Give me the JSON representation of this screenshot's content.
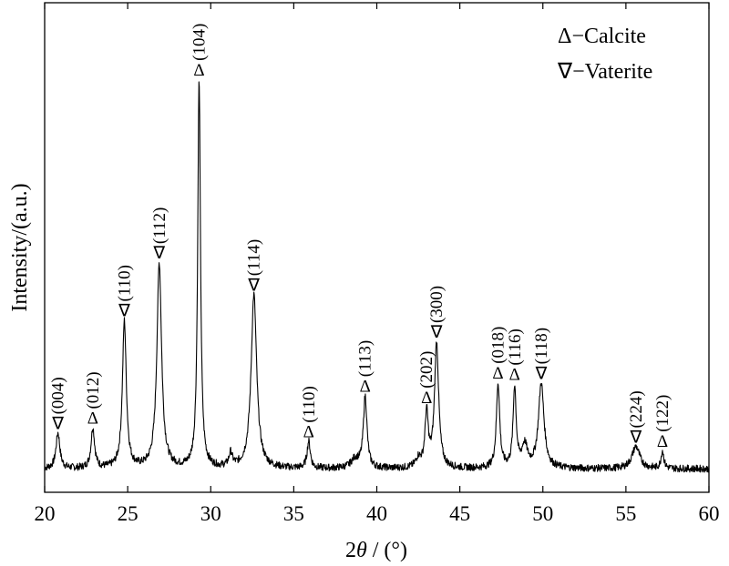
{
  "chart_data": {
    "type": "line",
    "title": "",
    "xlabel_prefix": "2",
    "xlabel_theta": "θ",
    "xlabel_suffix": " / (°)",
    "ylabel": "Intensity/(a.u.)",
    "xlim": [
      20,
      60
    ],
    "x_ticks": [
      20,
      25,
      30,
      35,
      40,
      45,
      50,
      55,
      60
    ],
    "y_ticks": "none",
    "grid": false,
    "legend_position": "top-right",
    "legend": [
      {
        "symbol": "Δ",
        "text": "−Calcite"
      },
      {
        "symbol": "∇",
        "text": "−Vaterite"
      }
    ],
    "series": [
      {
        "baseline": 3,
        "peaks": [
          {
            "x": 20.8,
            "height": 8,
            "width": 0.14
          },
          {
            "x": 22.9,
            "height": 9,
            "width": 0.13
          },
          {
            "x": 24.8,
            "height": 33,
            "width": 0.14
          },
          {
            "x": 26.9,
            "height": 46,
            "width": 0.17
          },
          {
            "x": 29.3,
            "height": 87,
            "width": 0.1
          },
          {
            "x": 31.2,
            "height": 3,
            "width": 0.12
          },
          {
            "x": 32.6,
            "height": 39,
            "width": 0.2
          },
          {
            "x": 35.9,
            "height": 6,
            "width": 0.12
          },
          {
            "x": 38.7,
            "height": 2,
            "width": 0.3
          },
          {
            "x": 39.3,
            "height": 16,
            "width": 0.13
          },
          {
            "x": 42.5,
            "height": 2,
            "width": 0.18
          },
          {
            "x": 43.0,
            "height": 12,
            "width": 0.12
          },
          {
            "x": 43.6,
            "height": 28,
            "width": 0.15
          },
          {
            "x": 47.3,
            "height": 19,
            "width": 0.12
          },
          {
            "x": 48.3,
            "height": 18,
            "width": 0.11
          },
          {
            "x": 48.9,
            "height": 5,
            "width": 0.2
          },
          {
            "x": 49.9,
            "height": 19,
            "width": 0.2
          },
          {
            "x": 55.6,
            "height": 5,
            "width": 0.28
          },
          {
            "x": 57.2,
            "height": 4,
            "width": 0.1
          }
        ]
      }
    ],
    "annotations": [
      {
        "x": 20.8,
        "marker": "∇",
        "label": "(004)"
      },
      {
        "x": 22.9,
        "marker": "Δ",
        "label": "(012)"
      },
      {
        "x": 24.8,
        "marker": "∇",
        "label": "(110)"
      },
      {
        "x": 26.9,
        "marker": "∇",
        "label": "(112)"
      },
      {
        "x": 29.3,
        "marker": "Δ",
        "label": "(104)"
      },
      {
        "x": 32.6,
        "marker": "∇",
        "label": "(114)"
      },
      {
        "x": 35.9,
        "marker": "Δ",
        "label": "(110)"
      },
      {
        "x": 39.3,
        "marker": "Δ",
        "label": "(113)"
      },
      {
        "x": 43.0,
        "marker": "Δ",
        "label": "(202)"
      },
      {
        "x": 43.6,
        "marker": "∇",
        "label": "(300)"
      },
      {
        "x": 47.3,
        "marker": "Δ",
        "label": "(018)"
      },
      {
        "x": 48.3,
        "marker": "Δ",
        "label": "(116)"
      },
      {
        "x": 49.9,
        "marker": "∇",
        "label": "(118)"
      },
      {
        "x": 55.6,
        "marker": "∇",
        "label": "(224)"
      },
      {
        "x": 57.2,
        "marker": "Δ",
        "label": "(122)"
      }
    ]
  }
}
